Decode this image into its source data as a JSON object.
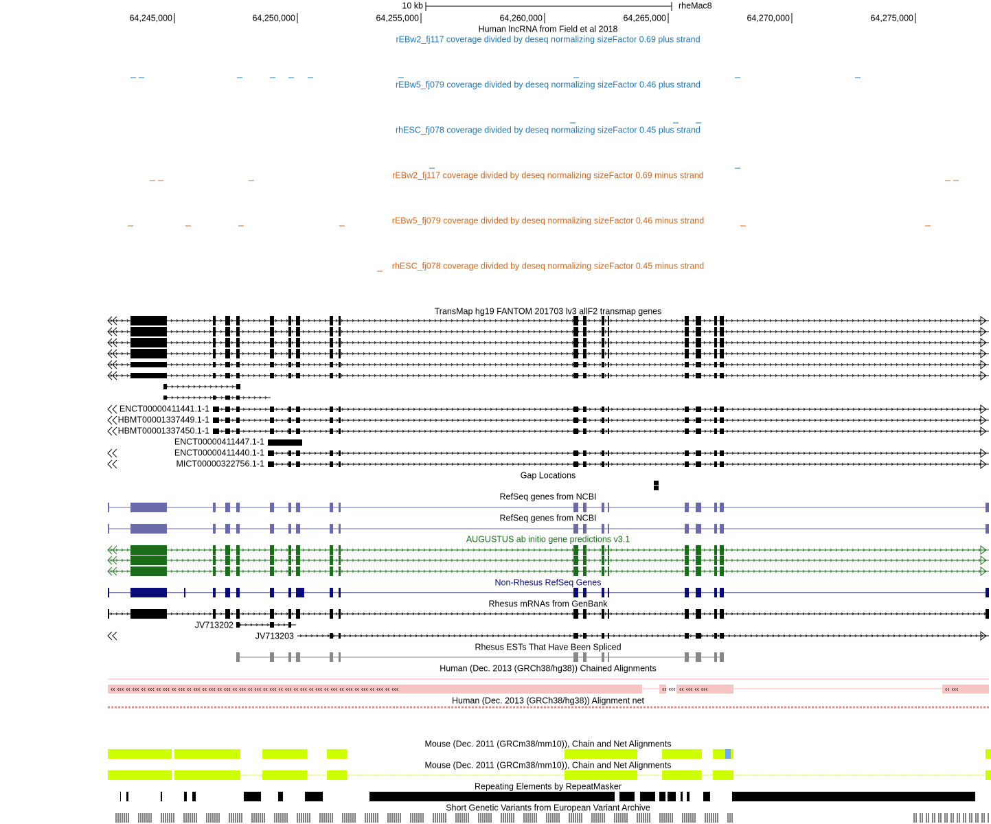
{
  "ruler": {
    "scale_label": "10 kb",
    "assembly": "rheMac8",
    "positions": [
      "64,245,000",
      "64,250,000",
      "64,255,000",
      "64,260,000",
      "64,265,000",
      "64,270,000",
      "64,275,000"
    ]
  },
  "tracks": [
    {
      "title": "Human lncRNA from Field et al 2018",
      "color": "#000000"
    },
    {
      "title": "rEBw2_fj117 coverage divided by deseq normalizing sizeFactor 0.69 plus strand",
      "color": "#1f77b4"
    },
    {
      "title": "rEBw5_fj079 coverage divided by deseq normalizing sizeFactor 0.46 plus strand",
      "color": "#1f77b4"
    },
    {
      "title": "rhESC_fj078 coverage divided by deseq normalizing sizeFactor 0.45 plus strand",
      "color": "#1f77b4"
    },
    {
      "title": "rEBw2_fj117 coverage divided by deseq normalizing sizeFactor 0.69 minus strand",
      "color": "#d2691e"
    },
    {
      "title": "rEBw5_fj079 coverage divided by deseq normalizing sizeFactor 0.46 minus strand",
      "color": "#d2691e"
    },
    {
      "title": "rhESC_fj078 coverage divided by deseq normalizing sizeFactor 0.45 minus strand",
      "color": "#d2691e"
    },
    {
      "title": "TransMap hg19 FANTOM 201703 lv3 allF2 transmap genes",
      "color": "#000000"
    },
    {
      "title": "Gap Locations",
      "color": "#000000"
    },
    {
      "title": "RefSeq genes from NCBI",
      "color": "#000000"
    },
    {
      "title": "RefSeq genes from NCBI",
      "color": "#000000"
    },
    {
      "title": "AUGUSTUS ab initio gene predictions v3.1",
      "color": "#1a6e1a"
    },
    {
      "title": "Non-Rhesus RefSeq Genes",
      "color": "#0a0a78"
    },
    {
      "title": "Rhesus mRNAs from GenBank",
      "color": "#000000"
    },
    {
      "title": "Rhesus ESTs That Have Been Spliced",
      "color": "#000000"
    },
    {
      "title": "Human (Dec. 2013 (GRCh38/hg38)) Chained Alignments",
      "color": "#000000"
    },
    {
      "title": "Human (Dec. 2013 (GRCh38/hg38)) Alignment net",
      "color": "#000000"
    },
    {
      "title": "Mouse (Dec. 2011 (GRCm38/mm10)), Chain and Net Alignments",
      "color": "#000000"
    },
    {
      "title": "Mouse (Dec. 2011 (GRCm38/mm10)), Chain and Net Alignments",
      "color": "#000000"
    },
    {
      "title": "Repeating Elements by RepeatMasker",
      "color": "#000000"
    },
    {
      "title": "Short Genetic Variants from European Variant Archive",
      "color": "#000000"
    }
  ],
  "transcripts": [
    "ENCT00000411441.1-1",
    "HBMT00001337449.1-1",
    "HBMT00001337450.1-1",
    "ENCT00000411447.1-1",
    "ENCT00000411440.1-1",
    "MICT00000322756.1-1"
  ],
  "mrnas": [
    "JV713202",
    "JV713203"
  ]
}
